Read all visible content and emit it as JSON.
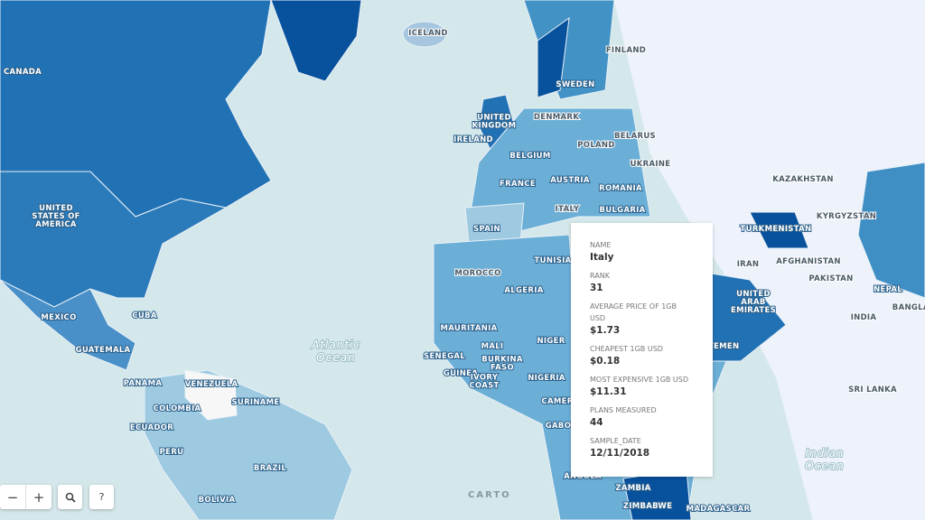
{
  "map": {
    "labels": [
      {
        "lines": [
          "CANADA"
        ]
      },
      {
        "lines": [
          "UNITED",
          "STATES OF",
          "AMERICA"
        ]
      },
      {
        "lines": [
          "MEXICO"
        ]
      },
      {
        "lines": [
          "CUBA"
        ]
      },
      {
        "lines": [
          "GUATEMALA"
        ]
      },
      {
        "lines": [
          "PANAMA"
        ]
      },
      {
        "lines": [
          "VENEZUELA"
        ]
      },
      {
        "lines": [
          "COLOMBIA"
        ]
      },
      {
        "lines": [
          "ECUADOR"
        ]
      },
      {
        "lines": [
          "SURINAME"
        ]
      },
      {
        "lines": [
          "PERU"
        ]
      },
      {
        "lines": [
          "BRAZIL"
        ]
      },
      {
        "lines": [
          "BOLIVIA"
        ]
      },
      {
        "lines": [
          "ICELAND"
        ]
      },
      {
        "lines": [
          "FINLAND"
        ]
      },
      {
        "lines": [
          "SWEDEN"
        ]
      },
      {
        "lines": [
          "DENMARK"
        ]
      },
      {
        "lines": [
          "UNITED",
          "KINGDOM"
        ]
      },
      {
        "lines": [
          "IRELAND"
        ]
      },
      {
        "lines": [
          "BELARUS"
        ]
      },
      {
        "lines": [
          "POLAND"
        ]
      },
      {
        "lines": [
          "UKRAINE"
        ]
      },
      {
        "lines": [
          "BELGIUM"
        ]
      },
      {
        "lines": [
          "FRANCE"
        ]
      },
      {
        "lines": [
          "AUSTRIA"
        ]
      },
      {
        "lines": [
          "ROMANIA"
        ]
      },
      {
        "lines": [
          "BULGARIA"
        ]
      },
      {
        "lines": [
          "ITALY"
        ]
      },
      {
        "lines": [
          "SPAIN"
        ]
      },
      {
        "lines": [
          "MOROCCO"
        ]
      },
      {
        "lines": [
          "TUNISIA"
        ]
      },
      {
        "lines": [
          "ALGERIA"
        ]
      },
      {
        "lines": [
          "MAURITANIA"
        ]
      },
      {
        "lines": [
          "MALI"
        ]
      },
      {
        "lines": [
          "NIGER"
        ]
      },
      {
        "lines": [
          "SENEGAL"
        ]
      },
      {
        "lines": [
          "GUINEA"
        ]
      },
      {
        "lines": [
          "BURKINA",
          "FASO"
        ]
      },
      {
        "lines": [
          "IVORY",
          "COAST"
        ]
      },
      {
        "lines": [
          "NIGERIA"
        ]
      },
      {
        "lines": [
          "CAMER"
        ]
      },
      {
        "lines": [
          "GABO"
        ]
      },
      {
        "lines": [
          "ANGOLA"
        ]
      },
      {
        "lines": [
          "ZAMBIA"
        ]
      },
      {
        "lines": [
          "ZIMBABWE"
        ]
      },
      {
        "lines": [
          "MADAGASCAR"
        ]
      },
      {
        "lines": [
          "KAZAKHSTAN"
        ]
      },
      {
        "lines": [
          "KYRGYZSTAN"
        ]
      },
      {
        "lines": [
          "TURKMENISTAN"
        ]
      },
      {
        "lines": [
          "IRAN"
        ]
      },
      {
        "lines": [
          "AFGHANISTAN"
        ]
      },
      {
        "lines": [
          "PAKISTAN"
        ]
      },
      {
        "lines": [
          "NEPAL"
        ]
      },
      {
        "lines": [
          "BANGLAI"
        ]
      },
      {
        "lines": [
          "INDIA"
        ]
      },
      {
        "lines": [
          "SRI LANKA"
        ]
      },
      {
        "lines": [
          "UNITED",
          "ARAB",
          "EMIRATES"
        ]
      },
      {
        "lines": [
          "YEMEN"
        ]
      }
    ],
    "oceans": [
      {
        "lines": [
          "Atlantic",
          "Ocean"
        ]
      },
      {
        "lines": [
          "Indian",
          "Ocean"
        ]
      }
    ]
  },
  "popup": {
    "fields": [
      {
        "label": "NAME",
        "value": "Italy"
      },
      {
        "label": "RANK",
        "value": "31"
      },
      {
        "label": "AVERAGE PRICE OF 1GB USD",
        "value": "$1.73"
      },
      {
        "label": "CHEAPEST 1GB USD",
        "value": "$0.18"
      },
      {
        "label": "MOST EXPENSIVE 1GB USD",
        "value": "$11.31"
      },
      {
        "label": "PLANS MEASURED",
        "value": "44"
      },
      {
        "label": "SAMPLE_DATE",
        "value": "12/11/2018"
      }
    ]
  },
  "controls": {
    "zoom_out": "−",
    "zoom_in": "+",
    "help": "?"
  },
  "attribution": "CARTO"
}
